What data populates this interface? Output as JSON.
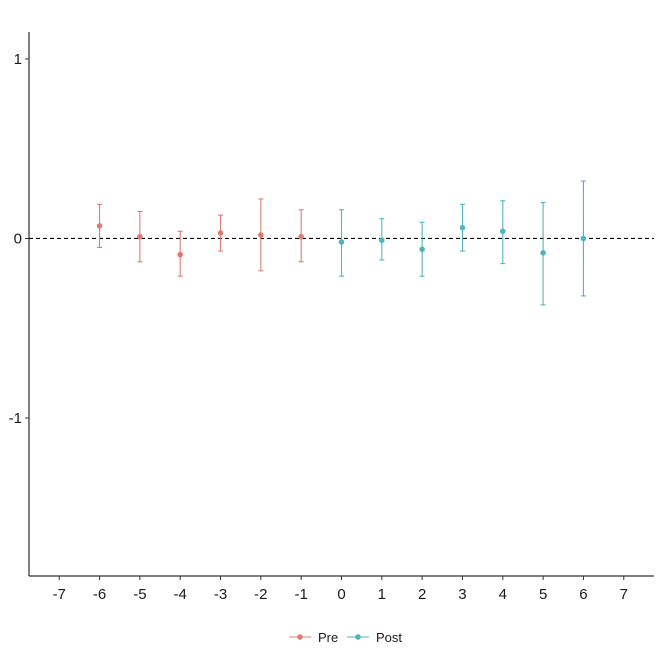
{
  "chart_data": {
    "type": "scatter",
    "title": "",
    "xlabel": "",
    "ylabel": "",
    "x_ticks": [
      -7,
      -6,
      -5,
      -4,
      -3,
      -2,
      -1,
      0,
      1,
      2,
      3,
      4,
      5,
      6,
      7
    ],
    "y_ticks": [
      1,
      0,
      -1
    ],
    "xlim": [
      -7.75,
      7.75
    ],
    "ylim": [
      -1.88,
      1.15
    ],
    "reference_line": {
      "y": 0,
      "style": "dashed"
    },
    "grid": false,
    "legend_position": "bottom",
    "series": [
      {
        "name": "Pre",
        "color": "#E07B73",
        "points": [
          {
            "x": -6,
            "y": 0.07,
            "lower": -0.05,
            "upper": 0.19
          },
          {
            "x": -5,
            "y": 0.01,
            "lower": -0.13,
            "upper": 0.15
          },
          {
            "x": -4,
            "y": -0.09,
            "lower": -0.21,
            "upper": 0.04
          },
          {
            "x": -3,
            "y": 0.03,
            "lower": -0.07,
            "upper": 0.13
          },
          {
            "x": -2,
            "y": 0.02,
            "lower": -0.18,
            "upper": 0.22
          },
          {
            "x": -1,
            "y": 0.01,
            "lower": -0.13,
            "upper": 0.16
          }
        ]
      },
      {
        "name": "Post",
        "color": "#52B5BC",
        "points": [
          {
            "x": 0,
            "y": -0.02,
            "lower": -0.21,
            "upper": 0.16
          },
          {
            "x": 1,
            "y": -0.01,
            "lower": -0.12,
            "upper": 0.11
          },
          {
            "x": 2,
            "y": -0.06,
            "lower": -0.21,
            "upper": 0.09
          },
          {
            "x": 3,
            "y": 0.06,
            "lower": -0.07,
            "upper": 0.19
          },
          {
            "x": 4,
            "y": 0.04,
            "lower": -0.14,
            "upper": 0.21
          },
          {
            "x": 5,
            "y": -0.08,
            "lower": -0.37,
            "upper": 0.2
          },
          {
            "x": 6,
            "y": 0.0,
            "lower": -0.32,
            "upper": 0.32
          }
        ]
      }
    ]
  }
}
